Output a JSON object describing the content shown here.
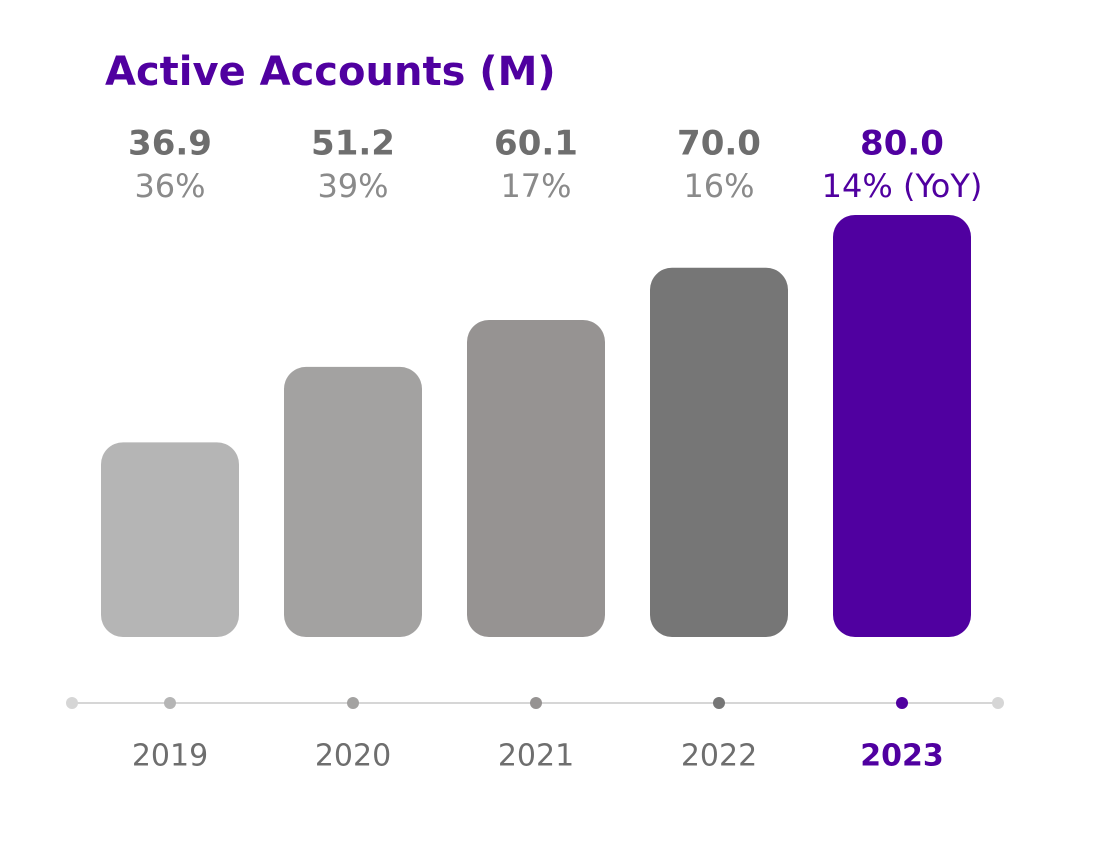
{
  "chart_data": {
    "type": "bar",
    "title": "Active Accounts (M)",
    "categories": [
      "2019",
      "2020",
      "2021",
      "2022",
      "2023"
    ],
    "values": [
      36.9,
      51.2,
      60.1,
      70.0,
      80.0
    ],
    "value_labels": [
      "36.9",
      "51.2",
      "60.1",
      "70.0",
      "80.0"
    ],
    "growth_labels": [
      "36%",
      "39%",
      "17%",
      "16%",
      "14% (YoY)"
    ],
    "colors": [
      "#b5b5b5",
      "#a3a2a1",
      "#969392",
      "#767676",
      "#5000a0"
    ],
    "label_colors": [
      "#6e6e6e",
      "#6e6e6e",
      "#6e6e6e",
      "#6e6e6e",
      "#5000a0"
    ],
    "ylim": [
      0,
      80
    ]
  }
}
